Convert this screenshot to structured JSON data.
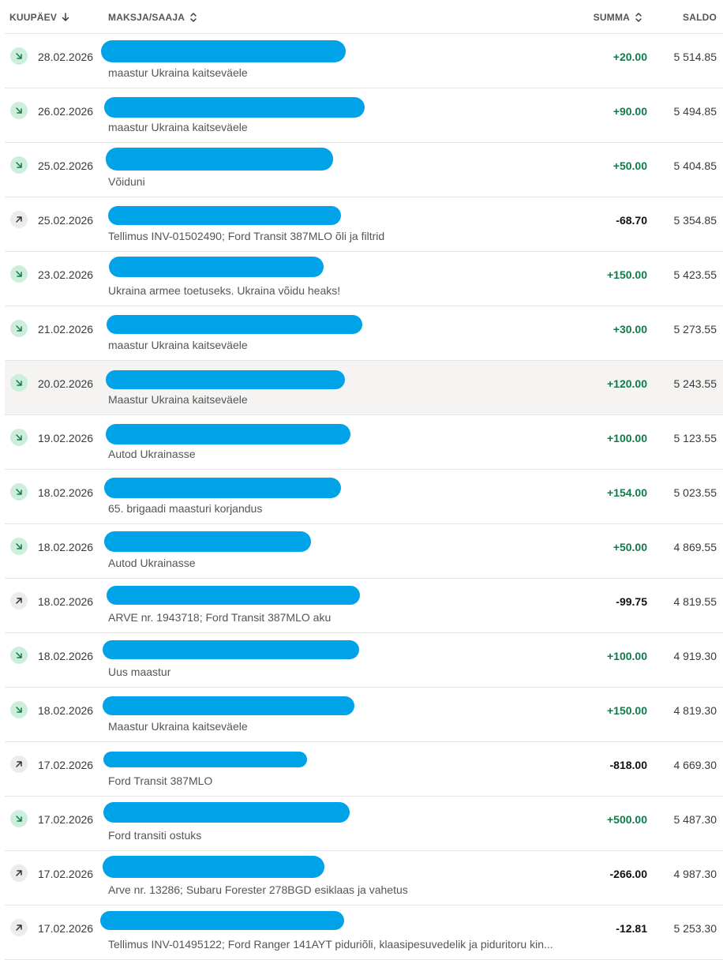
{
  "header": {
    "date_label": "KUUPÄEV",
    "party_label": "MAKSJA/SAAJA",
    "amount_label": "SUMMA",
    "balance_label": "SALDO"
  },
  "colors": {
    "incoming_amount": "#127a4a",
    "outgoing_amount": "#111111",
    "incoming_icon_bg": "#cdeedd",
    "outgoing_icon_bg": "#ececec",
    "redaction": "#00a3e8",
    "row_highlight": "#f5f4f2"
  },
  "transactions": [
    {
      "direction": "in",
      "icon": "arrow-down-right-icon",
      "date": "28.02.2026",
      "description": "maastur Ukraina kaitseväele",
      "amount": "+20.00",
      "balance": "5 514.85"
    },
    {
      "direction": "in",
      "icon": "arrow-down-right-icon",
      "date": "26.02.2026",
      "description": "maastur Ukraina kaitseväele",
      "amount": "+90.00",
      "balance": "5 494.85"
    },
    {
      "direction": "in",
      "icon": "arrow-down-right-icon",
      "date": "25.02.2026",
      "description": "Võiduni",
      "amount": "+50.00",
      "balance": "5 404.85"
    },
    {
      "direction": "out",
      "icon": "arrow-up-right-icon",
      "date": "25.02.2026",
      "description": "Tellimus INV-01502490; Ford Transit 387MLO õli ja filtrid",
      "amount": "-68.70",
      "balance": "5 354.85"
    },
    {
      "direction": "in",
      "icon": "arrow-down-right-icon",
      "date": "23.02.2026",
      "description": "Ukraina armee toetuseks. Ukraina võidu heaks!",
      "amount": "+150.00",
      "balance": "5 423.55"
    },
    {
      "direction": "in",
      "icon": "arrow-down-right-icon",
      "date": "21.02.2026",
      "description": "maastur Ukraina kaitseväele",
      "amount": "+30.00",
      "balance": "5 273.55"
    },
    {
      "direction": "in",
      "icon": "arrow-down-right-icon",
      "date": "20.02.2026",
      "description": "Maastur Ukraina kaitseväele",
      "amount": "+120.00",
      "balance": "5 243.55",
      "highlight": true
    },
    {
      "direction": "in",
      "icon": "arrow-down-right-icon",
      "date": "19.02.2026",
      "description": "Autod Ukrainasse",
      "amount": "+100.00",
      "balance": "5 123.55"
    },
    {
      "direction": "in",
      "icon": "arrow-down-right-icon",
      "date": "18.02.2026",
      "description": "65. brigaadi maasturi korjandus",
      "amount": "+154.00",
      "balance": "5 023.55"
    },
    {
      "direction": "in",
      "icon": "arrow-down-right-icon",
      "date": "18.02.2026",
      "description": "Autod Ukrainasse",
      "amount": "+50.00",
      "balance": "4 869.55"
    },
    {
      "direction": "out",
      "icon": "arrow-up-right-icon",
      "date": "18.02.2026",
      "description": "ARVE nr. 1943718; Ford Transit 387MLO aku",
      "amount": "-99.75",
      "balance": "4 819.55"
    },
    {
      "direction": "in",
      "icon": "arrow-down-right-icon",
      "date": "18.02.2026",
      "description": "Uus maastur",
      "amount": "+100.00",
      "balance": "4 919.30"
    },
    {
      "direction": "in",
      "icon": "arrow-down-right-icon",
      "date": "18.02.2026",
      "description": "Maastur Ukraina kaitseväele",
      "amount": "+150.00",
      "balance": "4 819.30"
    },
    {
      "direction": "out",
      "icon": "arrow-up-right-icon",
      "date": "17.02.2026",
      "description": "Ford Transit 387MLO",
      "amount": "-818.00",
      "balance": "4 669.30"
    },
    {
      "direction": "in",
      "icon": "arrow-down-right-icon",
      "date": "17.02.2026",
      "description": "Ford transiti ostuks",
      "amount": "+500.00",
      "balance": "5 487.30"
    },
    {
      "direction": "out",
      "icon": "arrow-up-right-icon",
      "date": "17.02.2026",
      "description": "Arve nr. 13286; Subaru Forester 278BGD esiklaas ja vahetus",
      "amount": "-266.00",
      "balance": "4 987.30"
    },
    {
      "direction": "out",
      "icon": "arrow-up-right-icon",
      "date": "17.02.2026",
      "description": "Tellimus INV-01495122; Ford Ranger 141AYT piduriõli, klaasipesuvedelik ja piduritoru kin...",
      "amount": "-12.81",
      "balance": "5 253.30"
    }
  ]
}
